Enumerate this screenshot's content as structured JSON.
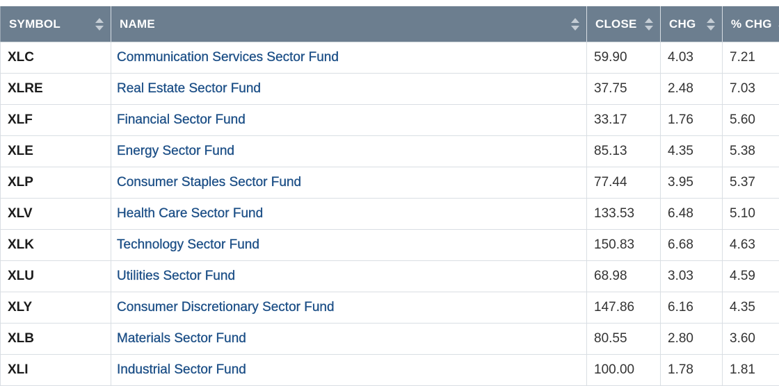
{
  "table": {
    "headers": {
      "symbol": "SYMBOL",
      "name": "NAME",
      "close": "CLOSE",
      "chg": "CHG",
      "pct_chg": "% CHG"
    },
    "sorted_column": "pct_chg",
    "sort_direction": "descending",
    "rows": [
      {
        "symbol": "XLC",
        "name": "Communication Services Sector Fund",
        "close": "59.90",
        "chg": "4.03",
        "pct_chg": "7.21"
      },
      {
        "symbol": "XLRE",
        "name": "Real Estate Sector Fund",
        "close": "37.75",
        "chg": "2.48",
        "pct_chg": "7.03"
      },
      {
        "symbol": "XLF",
        "name": "Financial Sector Fund",
        "close": "33.17",
        "chg": "1.76",
        "pct_chg": "5.60"
      },
      {
        "symbol": "XLE",
        "name": "Energy Sector Fund",
        "close": "85.13",
        "chg": "4.35",
        "pct_chg": "5.38"
      },
      {
        "symbol": "XLP",
        "name": "Consumer Staples Sector Fund",
        "close": "77.44",
        "chg": "3.95",
        "pct_chg": "5.37"
      },
      {
        "symbol": "XLV",
        "name": "Health Care Sector Fund",
        "close": "133.53",
        "chg": "6.48",
        "pct_chg": "5.10"
      },
      {
        "symbol": "XLK",
        "name": "Technology Sector Fund",
        "close": "150.83",
        "chg": "6.68",
        "pct_chg": "4.63"
      },
      {
        "symbol": "XLU",
        "name": "Utilities Sector Fund",
        "close": "68.98",
        "chg": "3.03",
        "pct_chg": "4.59"
      },
      {
        "symbol": "XLY",
        "name": "Consumer Discretionary Sector Fund",
        "close": "147.86",
        "chg": "6.16",
        "pct_chg": "4.35"
      },
      {
        "symbol": "XLB",
        "name": "Materials Sector Fund",
        "close": "80.55",
        "chg": "2.80",
        "pct_chg": "3.60"
      },
      {
        "symbol": "XLI",
        "name": "Industrial Sector Fund",
        "close": "100.00",
        "chg": "1.78",
        "pct_chg": "1.81"
      }
    ]
  },
  "colors": {
    "header_bg": "#6c7e8f",
    "header_text": "#ffffff",
    "link": "#1b4e86",
    "grid": "#d9dee3"
  },
  "icons": {
    "sort_neutral": "sort-updown-icon",
    "sort_active": "sort-down-arrow-icon"
  }
}
